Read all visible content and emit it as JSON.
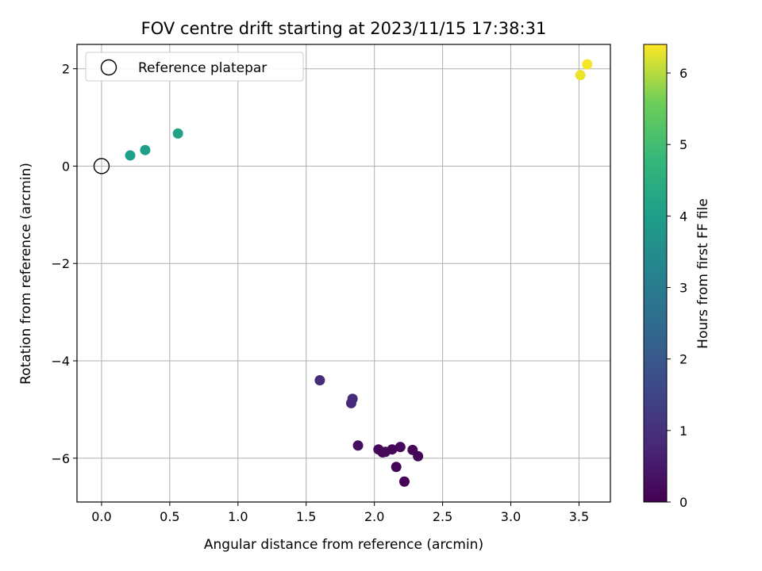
{
  "chart_data": {
    "type": "scatter",
    "title": "FOV centre drift starting at 2023/11/15 17:38:31",
    "xlabel": "Angular distance from reference (arcmin)",
    "ylabel": "Rotation from reference (arcmin)",
    "xlim": [
      -0.18,
      3.73
    ],
    "ylim": [
      -6.9,
      2.5
    ],
    "xticks": [
      0.0,
      0.5,
      1.0,
      1.5,
      2.0,
      2.5,
      3.0,
      3.5
    ],
    "xtick_labels": [
      "0.0",
      "0.5",
      "1.0",
      "1.5",
      "2.0",
      "2.5",
      "3.0",
      "3.5"
    ],
    "yticks": [
      2,
      0,
      -2,
      -4,
      -6
    ],
    "ytick_labels": [
      "2",
      "0",
      "−2",
      "−4",
      "−6"
    ],
    "grid": true,
    "colormap": "viridis",
    "colorbar": {
      "label": "Hours from first FF file",
      "range": [
        0,
        6.4
      ],
      "ticks": [
        0,
        1,
        2,
        3,
        4,
        5,
        6
      ],
      "tick_labels": [
        "0",
        "1",
        "2",
        "3",
        "4",
        "5",
        "6"
      ]
    },
    "legend": {
      "placement": "top-left",
      "entries": [
        {
          "label": "Reference platepar",
          "marker": "open-circle"
        }
      ]
    },
    "reference_point": {
      "label": "Reference platepar",
      "x": 0.0,
      "y": 0.0
    },
    "series": [
      {
        "points": [
          {
            "x": 0.21,
            "y": 0.22,
            "c": 4.0
          },
          {
            "x": 0.32,
            "y": 0.33,
            "c": 4.0
          },
          {
            "x": 0.56,
            "y": 0.67,
            "c": 4.1
          },
          {
            "x": 3.51,
            "y": 1.87,
            "c": 6.3
          },
          {
            "x": 3.56,
            "y": 2.09,
            "c": 6.35
          },
          {
            "x": 1.6,
            "y": -4.4,
            "c": 0.9
          },
          {
            "x": 1.84,
            "y": -4.78,
            "c": 0.85
          },
          {
            "x": 1.83,
            "y": -4.87,
            "c": 0.8
          },
          {
            "x": 1.88,
            "y": -5.74,
            "c": 0.25
          },
          {
            "x": 2.03,
            "y": -5.82,
            "c": 0.15
          },
          {
            "x": 2.06,
            "y": -5.88,
            "c": 0.1
          },
          {
            "x": 2.08,
            "y": -5.87,
            "c": 0.15
          },
          {
            "x": 2.13,
            "y": -5.82,
            "c": 0.1
          },
          {
            "x": 2.19,
            "y": -5.77,
            "c": 0.15
          },
          {
            "x": 2.28,
            "y": -5.83,
            "c": 0.1
          },
          {
            "x": 2.32,
            "y": -5.96,
            "c": 0.1
          },
          {
            "x": 2.16,
            "y": -6.18,
            "c": 0.05
          },
          {
            "x": 2.22,
            "y": -6.48,
            "c": 0.05
          }
        ]
      }
    ]
  }
}
